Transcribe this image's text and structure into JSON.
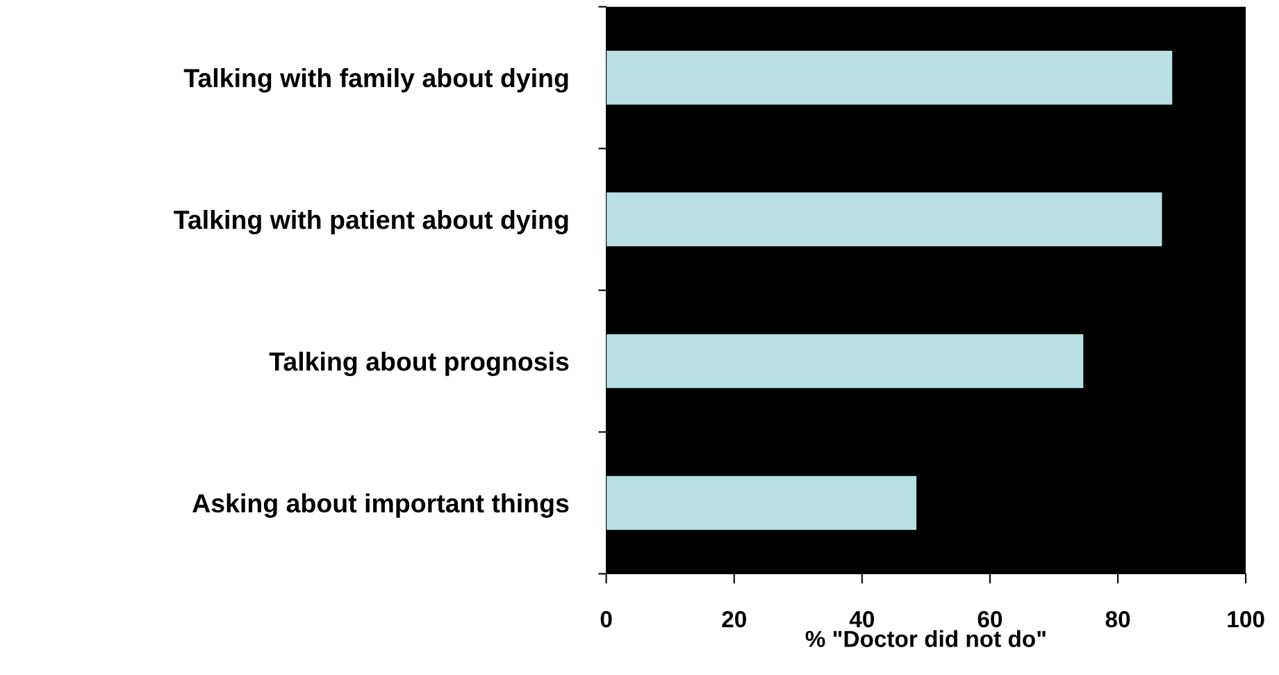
{
  "chart_data": {
    "type": "bar",
    "orientation": "horizontal",
    "categories": [
      "Talking with family about dying",
      "Talking with patient about dying",
      "Talking about prognosis",
      "Asking about important things"
    ],
    "values": [
      88.5,
      86.9,
      74.6,
      48.5
    ],
    "color": "#b9e0e3",
    "xlabel": "% \"Doctor did not do\"",
    "xlim": [
      0,
      100
    ],
    "xticks": [
      0,
      20,
      40,
      60,
      80,
      100
    ],
    "grid": false,
    "legend": false
  }
}
